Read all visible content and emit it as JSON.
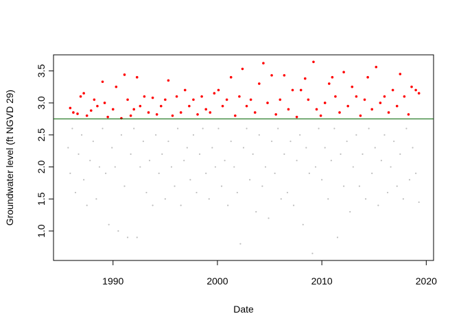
{
  "chart_data": {
    "type": "scatter",
    "xlabel": "Date",
    "ylabel": "Groundwater level (ft NGVD 29)",
    "xlim": [
      1984.3,
      2020.7
    ],
    "ylim": [
      0.54,
      3.75
    ],
    "xticks": [
      1990,
      2000,
      2010,
      2020
    ],
    "yticks": [
      {
        "value": 1,
        "label": "1.0"
      },
      {
        "value": 1.5,
        "label": "1.5"
      },
      {
        "value": 2,
        "label": "2.0"
      },
      {
        "value": 2.5,
        "label": "2.5"
      },
      {
        "value": 3,
        "label": "3.0"
      },
      {
        "value": 3.5,
        "label": "3.5"
      }
    ],
    "threshold": 2.75,
    "threshold_color": "#006400",
    "series": [
      {
        "color": "#bebebe",
        "x": [
          1985.7,
          1985.9,
          1986.1,
          1986.4,
          1986.7,
          1987.0,
          1987.2,
          1987.5,
          1987.8,
          1988.1,
          1988.4,
          1988.7,
          1989.0,
          1989.3,
          1989.6,
          1989.9,
          1990.2,
          1990.5,
          1990.8,
          1991.1,
          1991.4,
          1991.7,
          1992.0,
          1992.3,
          1992.6,
          1992.9,
          1993.2,
          1993.5,
          1993.8,
          1994.1,
          1994.4,
          1994.7,
          1995.0,
          1995.3,
          1995.6,
          1995.9,
          1996.2,
          1996.5,
          1996.8,
          1997.1,
          1997.4,
          1997.7,
          1998.0,
          1998.3,
          1998.6,
          1998.9,
          1999.2,
          1999.5,
          1999.8,
          2000.1,
          2000.4,
          2000.7,
          2001.0,
          2001.3,
          2001.6,
          2001.9,
          2002.2,
          2002.5,
          2002.8,
          2003.1,
          2003.4,
          2003.7,
          2004.0,
          2004.3,
          2004.6,
          2004.9,
          2005.2,
          2005.5,
          2005.8,
          2006.1,
          2006.4,
          2006.7,
          2007.0,
          2007.3,
          2007.6,
          2007.9,
          2008.2,
          2008.5,
          2008.8,
          2009.1,
          2009.4,
          2009.7,
          2010.0,
          2010.3,
          2010.6,
          2010.9,
          2011.2,
          2011.5,
          2011.8,
          2012.1,
          2012.4,
          2012.7,
          2013.0,
          2013.3,
          2013.6,
          2013.9,
          2014.2,
          2014.5,
          2014.8,
          2015.1,
          2015.4,
          2015.7,
          2016.0,
          2016.3,
          2016.6,
          2016.9,
          2017.2,
          2017.5,
          2017.8,
          2018.1,
          2018.4,
          2018.7,
          2019.0,
          2019.3
        ],
        "values": [
          2.3,
          1.9,
          2.6,
          1.6,
          2.2,
          2.5,
          1.8,
          1.4,
          2.1,
          2.4,
          1.5,
          2.0,
          2.6,
          1.9,
          1.1,
          2.3,
          2.0,
          1.0,
          2.5,
          1.7,
          0.9,
          2.2,
          2.6,
          0.9,
          2.0,
          2.4,
          1.6,
          2.1,
          1.4,
          2.5,
          1.9,
          2.2,
          1.5,
          2.4,
          2.0,
          1.7,
          2.6,
          1.4,
          2.1,
          2.3,
          1.8,
          2.5,
          1.6,
          2.2,
          2.6,
          1.9,
          1.5,
          2.3,
          2.0,
          2.6,
          1.7,
          2.1,
          1.4,
          2.4,
          2.0,
          1.6,
          0.8,
          2.3,
          2.6,
          1.8,
          2.2,
          1.3,
          2.5,
          1.7,
          2.0,
          1.2,
          2.4,
          1.9,
          2.6,
          1.5,
          2.2,
          1.6,
          2.4,
          1.4,
          2.1,
          2.5,
          1.1,
          2.3,
          1.9,
          0.65,
          2.0,
          2.6,
          1.8,
          2.3,
          1.5,
          2.1,
          2.6,
          0.9,
          2.2,
          1.7,
          2.4,
          1.3,
          2.0,
          2.5,
          1.7,
          2.2,
          1.5,
          2.6,
          1.9,
          2.3,
          1.4,
          2.1,
          2.5,
          1.6,
          2.0,
          2.4,
          1.7,
          2.2,
          1.5,
          2.6,
          1.8,
          2.3,
          1.9,
          1.45
        ]
      },
      {
        "color": "#ff0000",
        "x": [
          1985.9,
          1986.2,
          1986.6,
          1986.9,
          1987.2,
          1987.5,
          1987.9,
          1988.2,
          1988.5,
          1989.0,
          1989.2,
          1989.5,
          1990.0,
          1990.3,
          1990.8,
          1991.1,
          1991.4,
          1991.7,
          1992.0,
          1992.3,
          1992.6,
          1993.0,
          1993.4,
          1993.8,
          1994.2,
          1994.6,
          1995.0,
          1995.3,
          1995.7,
          1996.1,
          1996.5,
          1996.9,
          1997.3,
          1997.7,
          1998.1,
          1998.5,
          1998.9,
          1999.3,
          1999.7,
          2000.1,
          2000.5,
          2000.9,
          2001.3,
          2001.7,
          2002.1,
          2002.4,
          2002.8,
          2003.2,
          2003.6,
          2004.0,
          2004.4,
          2004.8,
          2005.2,
          2005.6,
          2006.0,
          2006.4,
          2006.8,
          2007.2,
          2007.6,
          2008.0,
          2008.4,
          2008.7,
          2009.2,
          2009.5,
          2009.9,
          2010.3,
          2010.7,
          2011.0,
          2011.3,
          2011.7,
          2012.1,
          2012.5,
          2012.9,
          2013.3,
          2013.7,
          2014.1,
          2014.4,
          2014.8,
          2015.2,
          2015.6,
          2016.0,
          2016.4,
          2016.8,
          2017.2,
          2017.5,
          2017.9,
          2018.3,
          2018.6,
          2019.0,
          2019.3
        ],
        "values": [
          2.92,
          2.85,
          2.83,
          3.1,
          3.15,
          2.8,
          2.88,
          3.05,
          2.95,
          3.33,
          3.0,
          2.78,
          2.9,
          3.25,
          2.76,
          3.44,
          3.05,
          2.8,
          2.9,
          3.4,
          2.95,
          3.1,
          2.85,
          3.08,
          2.82,
          2.95,
          3.05,
          3.35,
          2.8,
          3.1,
          2.85,
          3.2,
          2.95,
          3.05,
          2.82,
          3.1,
          2.9,
          2.85,
          3.15,
          3.2,
          2.95,
          3.05,
          3.4,
          2.8,
          3.1,
          3.53,
          2.95,
          3.05,
          2.85,
          3.3,
          3.62,
          3.0,
          3.43,
          2.82,
          3.05,
          3.43,
          2.9,
          3.2,
          2.78,
          3.2,
          3.38,
          3.05,
          3.64,
          2.9,
          2.8,
          3.0,
          3.3,
          3.4,
          3.1,
          2.85,
          3.48,
          2.95,
          3.25,
          3.1,
          2.8,
          3.05,
          3.4,
          2.9,
          3.56,
          3.0,
          3.1,
          2.85,
          3.2,
          2.95,
          3.45,
          3.1,
          2.82,
          3.25,
          3.2,
          3.15
        ]
      }
    ]
  }
}
